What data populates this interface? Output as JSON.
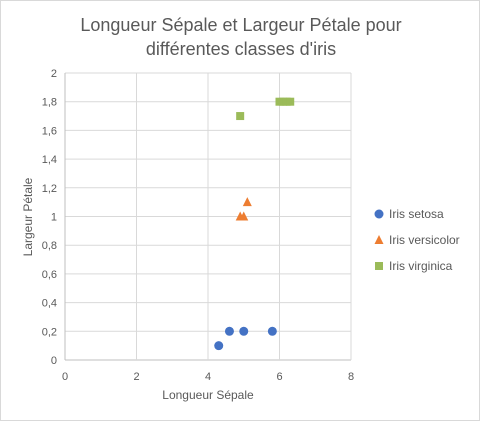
{
  "chart_data": {
    "type": "scatter",
    "title_lines": [
      "Longueur Sépale et Largeur Pétale pour",
      "différentes classes d'iris"
    ],
    "xlabel": "Longueur Sépale",
    "ylabel": "Largeur Pétale",
    "xlim": [
      0,
      8
    ],
    "ylim": [
      0,
      2
    ],
    "x_ticks": [
      "0",
      "2",
      "4",
      "6",
      "8"
    ],
    "y_ticks": [
      "0",
      "0,2",
      "0,4",
      "0,6",
      "0,8",
      "1",
      "1,2",
      "1,4",
      "1,6",
      "1,8",
      "2"
    ],
    "grid": true,
    "legend_position": "right",
    "series": [
      {
        "name": "Iris setosa",
        "marker": "circle",
        "color": "#4472C4",
        "points": [
          [
            4.3,
            0.1
          ],
          [
            4.6,
            0.2
          ],
          [
            5.0,
            0.2
          ],
          [
            5.8,
            0.2
          ]
        ]
      },
      {
        "name": "Iris versicolor",
        "marker": "triangle",
        "color": "#ED7D31",
        "points": [
          [
            4.9,
            1.0
          ],
          [
            5.0,
            1.0
          ],
          [
            5.1,
            1.1
          ]
        ]
      },
      {
        "name": "Iris virginica",
        "marker": "square",
        "color": "#A5A5A5",
        "display_color": "#9BBB59",
        "points": [
          [
            4.9,
            1.7
          ],
          [
            6.0,
            1.8
          ],
          [
            6.1,
            1.8
          ],
          [
            6.2,
            1.8
          ],
          [
            6.3,
            1.8
          ]
        ]
      }
    ]
  }
}
